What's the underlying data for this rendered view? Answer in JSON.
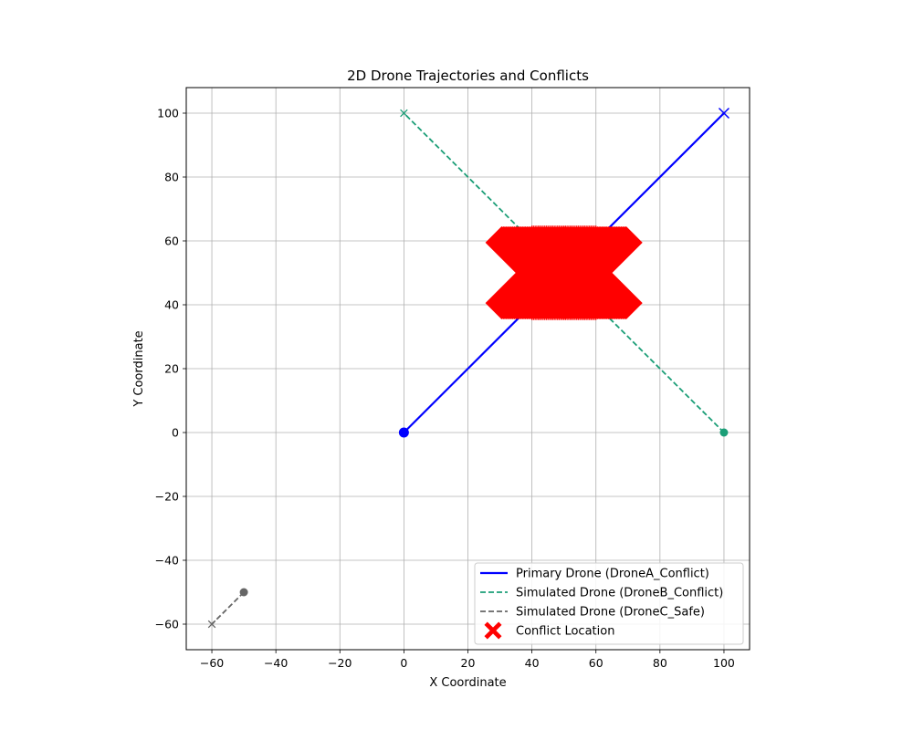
{
  "chart_data": {
    "type": "line",
    "title": "2D Drone Trajectories and Conflicts",
    "xlabel": "X Coordinate",
    "ylabel": "Y Coordinate",
    "xlim": [
      -68,
      108
    ],
    "ylim": [
      -68,
      108
    ],
    "xticks": [
      -60,
      -40,
      -20,
      0,
      20,
      40,
      60,
      80,
      100
    ],
    "yticks": [
      -60,
      -40,
      -20,
      0,
      20,
      40,
      60,
      80,
      100
    ],
    "grid": true,
    "legend_position": "lower-right",
    "series": [
      {
        "name": "Primary Drone (DroneA_Conflict)",
        "color": "#0000ff",
        "style": "solid",
        "points": [
          [
            0,
            0
          ],
          [
            100,
            100
          ]
        ],
        "start_marker": "circle",
        "end_marker": "x"
      },
      {
        "name": "Simulated Drone (DroneB_Conflict)",
        "color": "#1b9e77",
        "style": "dashed",
        "points": [
          [
            100,
            0
          ],
          [
            0,
            100
          ]
        ],
        "start_marker": "circle",
        "end_marker": "x"
      },
      {
        "name": "Simulated Drone (DroneC_Safe)",
        "color": "#666666",
        "style": "dashed",
        "points": [
          [
            -50,
            -50
          ],
          [
            -60,
            -60
          ]
        ],
        "start_marker": "circle",
        "end_marker": "x"
      }
    ],
    "conflicts": {
      "name": "Conflict Location",
      "color": "#ff0000",
      "marker": "X",
      "points": [
        [
          40,
          50
        ],
        [
          40.5,
          50
        ],
        [
          41,
          50
        ],
        [
          41.5,
          50
        ],
        [
          42,
          50
        ],
        [
          42.5,
          50
        ],
        [
          43,
          50
        ],
        [
          43.5,
          50
        ],
        [
          44,
          50
        ],
        [
          44.5,
          50
        ],
        [
          45,
          50
        ],
        [
          45.5,
          50
        ],
        [
          46,
          50
        ],
        [
          46.5,
          50
        ],
        [
          47,
          50
        ],
        [
          47.5,
          50
        ],
        [
          48,
          50
        ],
        [
          48.5,
          50
        ],
        [
          49,
          50
        ],
        [
          49.5,
          50
        ],
        [
          50,
          50
        ],
        [
          50.5,
          50
        ],
        [
          51,
          50
        ],
        [
          51.5,
          50
        ],
        [
          52,
          50
        ],
        [
          52.5,
          50
        ],
        [
          53,
          50
        ],
        [
          53.5,
          50
        ],
        [
          54,
          50
        ],
        [
          54.5,
          50
        ],
        [
          55,
          50
        ],
        [
          55.5,
          50
        ],
        [
          56,
          50
        ],
        [
          56.5,
          50
        ],
        [
          57,
          50
        ],
        [
          57.5,
          50
        ],
        [
          58,
          50
        ],
        [
          58.5,
          50
        ],
        [
          59,
          50
        ],
        [
          59.5,
          50
        ],
        [
          60,
          50
        ]
      ]
    }
  }
}
